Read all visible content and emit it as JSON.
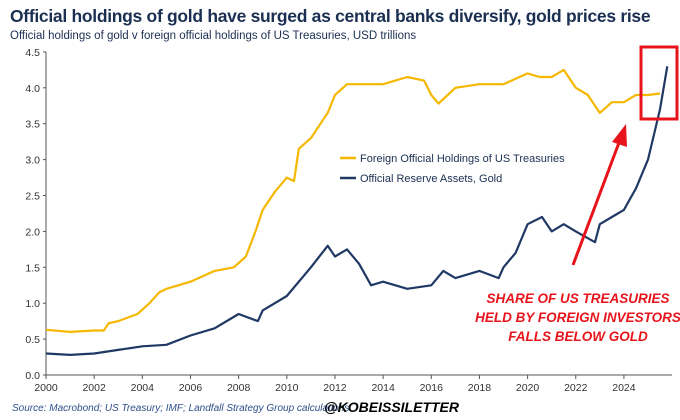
{
  "chart_data": {
    "type": "line",
    "title": "Official holdings of gold have surged as central banks diversify, gold prices rise",
    "subtitle": "Official holdings of gold v foreign official holdings of US Treasuries, USD trillions",
    "xlim": [
      2000,
      2026
    ],
    "ylim": [
      0,
      4.5
    ],
    "x_ticks": [
      "2000",
      "2002",
      "2004",
      "2006",
      "2008",
      "2010",
      "2012",
      "2014",
      "2016",
      "2018",
      "2020",
      "2022",
      "2024"
    ],
    "y_ticks": [
      "0.0",
      "0.5",
      "1.0",
      "1.5",
      "2.0",
      "2.5",
      "3.0",
      "3.5",
      "4.0",
      "4.5"
    ],
    "grid": false,
    "legend_position": "center",
    "series": [
      {
        "name": "Foreign Official Holdings of US Treasuries",
        "color": "#f5b800",
        "x": [
          2000,
          2001,
          2002,
          2002.4,
          2002.6,
          2003,
          2003.8,
          2004.3,
          2004.7,
          2005,
          2006,
          2007,
          2007.8,
          2008.3,
          2008.7,
          2009,
          2009.5,
          2010,
          2010.3,
          2010.5,
          2011,
          2011.4,
          2011.7,
          2012,
          2012.5,
          2013,
          2014,
          2015,
          2015.7,
          2016,
          2016.3,
          2017,
          2018,
          2019,
          2020,
          2020.5,
          2021,
          2021.5,
          2022,
          2022.5,
          2023,
          2023.5,
          2024,
          2024.5,
          2025,
          2025.5
        ],
        "values": [
          0.63,
          0.6,
          0.62,
          0.62,
          0.72,
          0.75,
          0.85,
          1.0,
          1.15,
          1.2,
          1.3,
          1.45,
          1.5,
          1.65,
          2.0,
          2.3,
          2.55,
          2.75,
          2.7,
          3.15,
          3.3,
          3.5,
          3.65,
          3.9,
          4.05,
          4.05,
          4.05,
          4.15,
          4.1,
          3.9,
          3.78,
          4.0,
          4.05,
          4.05,
          4.2,
          4.15,
          4.15,
          4.25,
          4.0,
          3.9,
          3.65,
          3.8,
          3.8,
          3.9,
          3.9,
          3.92
        ]
      },
      {
        "name": "Official Reserve Assets, Gold",
        "color": "#1f3864",
        "x": [
          2000,
          2001,
          2002,
          2003,
          2004,
          2005,
          2006,
          2007,
          2008,
          2008.8,
          2009,
          2010,
          2011,
          2011.7,
          2012,
          2012.5,
          2013,
          2013.5,
          2014,
          2015,
          2016,
          2016.5,
          2017,
          2018,
          2018.8,
          2019,
          2019.5,
          2020,
          2020.6,
          2021,
          2021.5,
          2022,
          2022.8,
          2023,
          2023.5,
          2024,
          2024.5,
          2025,
          2025.5,
          2025.8
        ],
        "values": [
          0.3,
          0.28,
          0.3,
          0.35,
          0.4,
          0.42,
          0.55,
          0.65,
          0.85,
          0.75,
          0.9,
          1.1,
          1.5,
          1.8,
          1.65,
          1.75,
          1.55,
          1.25,
          1.3,
          1.2,
          1.25,
          1.45,
          1.35,
          1.45,
          1.35,
          1.5,
          1.7,
          2.1,
          2.2,
          2.0,
          2.1,
          2.0,
          1.85,
          2.1,
          2.2,
          2.3,
          2.6,
          3.0,
          3.7,
          4.3
        ]
      }
    ],
    "annotations": [
      "SHARE OF US TREASURIES",
      "HELD BY FOREIGN INVESTORS",
      "FALLS BELOW GOLD"
    ],
    "annotation_color": "#e8141c"
  },
  "source": "Source: Macrobond; US Treasury; IMF; Landfall Strategy Group calculations.",
  "handle": "@KOBEISSILETTER"
}
